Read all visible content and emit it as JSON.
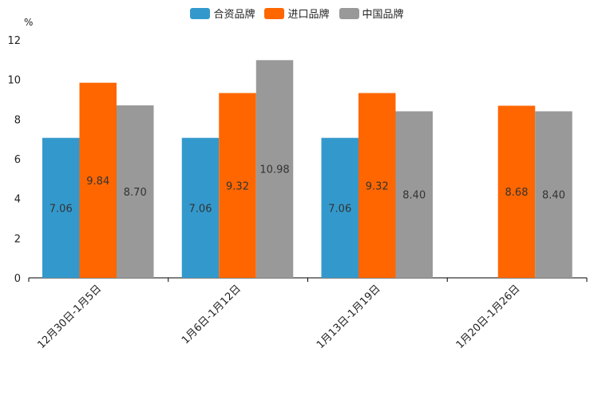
{
  "chart_data": {
    "type": "bar",
    "title": "",
    "ylabel": "%",
    "xlabel": "",
    "ylim": [
      0,
      12
    ],
    "yticks": [
      0,
      2,
      4,
      6,
      8,
      10,
      12
    ],
    "categories": [
      "12月30日-1月5日",
      "1月6日-1月12日",
      "1月13日-1月19日",
      "1月20日-1月26日"
    ],
    "series": [
      {
        "name": "合资品牌",
        "color": "#3399cc",
        "values": [
          7.06,
          7.06,
          7.06,
          null
        ],
        "labels": [
          "7.06",
          "7.06",
          "7.06",
          ""
        ]
      },
      {
        "name": "进口品牌",
        "color": "#ff6600",
        "values": [
          9.84,
          9.32,
          9.32,
          8.68
        ],
        "labels": [
          "9.84",
          "9.32",
          "9.32",
          "8.68"
        ]
      },
      {
        "name": "中国品牌",
        "color": "#999999",
        "values": [
          8.7,
          10.98,
          8.4,
          8.4
        ],
        "labels": [
          "8.70",
          "10.98",
          "8.40",
          "8.40"
        ]
      }
    ],
    "legend": "top-center",
    "grid": false
  }
}
